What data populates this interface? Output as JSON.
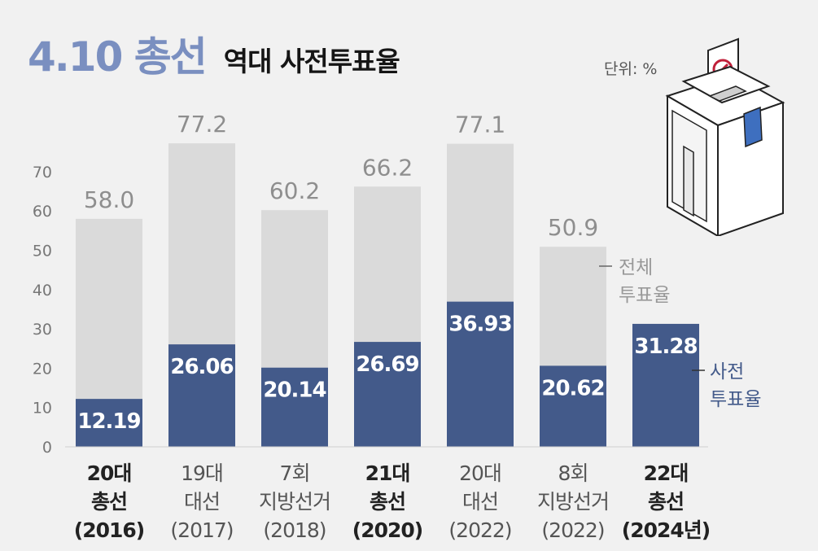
{
  "header": {
    "title_highlight": "4.10 총선",
    "title_sub": "역대 사전투표율",
    "unit": "단위: %"
  },
  "legend": {
    "total_line1": "전체",
    "total_line2": "투표율",
    "early_line1": "사전",
    "early_line2": "투표율"
  },
  "colors": {
    "total_bar": "#dadada",
    "early_bar": "#435a8a",
    "total_label": "#8e8e8e",
    "early_label": "#ffffff",
    "early_legend": "#435a8a",
    "highlight_text": "#222222"
  },
  "icons": [
    "ballot-box-icon"
  ],
  "chart_data": {
    "type": "bar",
    "ylim": [
      0,
      80
    ],
    "yticks": [
      0,
      10,
      20,
      30,
      40,
      50,
      60,
      70
    ],
    "grid": false,
    "categories": [
      {
        "lines": [
          "20대",
          "총선",
          "(2016)"
        ],
        "bold": true
      },
      {
        "lines": [
          "19대",
          "대선",
          "(2017)"
        ],
        "bold": false
      },
      {
        "lines": [
          "7회",
          "지방선거",
          "(2018)"
        ],
        "bold": false
      },
      {
        "lines": [
          "21대",
          "총선",
          "(2020)"
        ],
        "bold": true
      },
      {
        "lines": [
          "20대",
          "대선",
          "(2022)"
        ],
        "bold": false
      },
      {
        "lines": [
          "8회",
          "지방선거",
          "(2022)"
        ],
        "bold": false
      },
      {
        "lines": [
          "22대",
          "총선",
          "(2024년)"
        ],
        "bold": true
      }
    ],
    "series": [
      {
        "name": "전체 투표율",
        "values": [
          58.0,
          77.2,
          60.2,
          66.2,
          77.1,
          50.9,
          null
        ],
        "labels": [
          "58.0",
          "77.2",
          "60.2",
          "66.2",
          "77.1",
          "50.9",
          ""
        ]
      },
      {
        "name": "사전 투표율",
        "values": [
          12.19,
          26.06,
          20.14,
          26.69,
          36.93,
          20.62,
          31.28
        ],
        "labels": [
          "12.19",
          "26.06",
          "20.14",
          "26.69",
          "36.93",
          "20.62",
          "31.28"
        ]
      }
    ]
  }
}
